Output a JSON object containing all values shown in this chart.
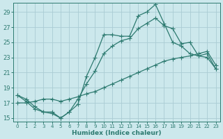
{
  "xlabel": "Humidex (Indice chaleur)",
  "xlim": [
    -0.5,
    23.5
  ],
  "ylim": [
    14.5,
    30.2
  ],
  "yticks": [
    15,
    17,
    19,
    21,
    23,
    25,
    27,
    29
  ],
  "xticks": [
    0,
    1,
    2,
    3,
    4,
    5,
    6,
    7,
    8,
    9,
    10,
    11,
    12,
    13,
    14,
    15,
    16,
    17,
    18,
    19,
    20,
    21,
    22,
    23
  ],
  "bg_color": "#cce8ec",
  "grid_color": "#aaccd4",
  "line_color": "#2d7a70",
  "line1_x": [
    0,
    1,
    2,
    3,
    4,
    5,
    6,
    7,
    8,
    9,
    10,
    11,
    12,
    13,
    14,
    15,
    16,
    17,
    18,
    19,
    20,
    21,
    22,
    23
  ],
  "line1_y": [
    18.0,
    17.5,
    16.5,
    15.8,
    15.8,
    15.0,
    15.8,
    16.8,
    20.5,
    23.0,
    26.0,
    26.0,
    25.8,
    25.8,
    28.5,
    29.0,
    30.0,
    27.5,
    25.0,
    24.5,
    23.5,
    23.2,
    23.0,
    21.5
  ],
  "line2_x": [
    0,
    1,
    2,
    3,
    4,
    5,
    6,
    7,
    8,
    9,
    10,
    11,
    12,
    13,
    14,
    15,
    16,
    17,
    18,
    19,
    20,
    21,
    22,
    23
  ],
  "line2_y": [
    18.0,
    17.2,
    16.2,
    15.8,
    15.6,
    15.0,
    15.8,
    17.5,
    19.5,
    21.2,
    23.5,
    24.5,
    25.2,
    25.5,
    26.8,
    27.5,
    28.2,
    27.2,
    26.8,
    24.8,
    25.0,
    23.2,
    23.5,
    21.5
  ],
  "line3_x": [
    0,
    1,
    2,
    3,
    4,
    5,
    6,
    7,
    8,
    9,
    10,
    11,
    12,
    13,
    14,
    15,
    16,
    17,
    18,
    19,
    20,
    21,
    22,
    23
  ],
  "line3_y": [
    17.0,
    17.0,
    17.2,
    17.5,
    17.5,
    17.2,
    17.5,
    17.8,
    18.2,
    18.5,
    19.0,
    19.5,
    20.0,
    20.5,
    21.0,
    21.5,
    22.0,
    22.5,
    22.8,
    23.0,
    23.2,
    23.5,
    23.8,
    22.0
  ]
}
